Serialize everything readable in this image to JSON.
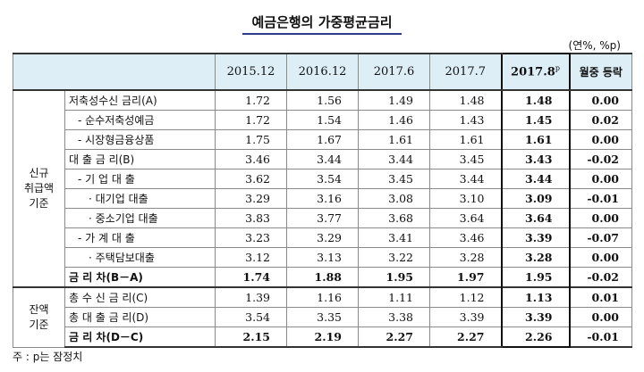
{
  "title": "예금은행의 가중평균금리",
  "unit": "(연%, %p)",
  "columns": [
    "2015.12",
    "2016.12",
    "2017.6",
    "2017.7",
    "2017.8",
    "월중 등락"
  ],
  "highlight_marker": "p",
  "groups": {
    "new": [
      "신규",
      "취급액",
      "기준"
    ],
    "balance": [
      "잔액",
      "기준"
    ]
  },
  "rows": [
    {
      "label": "저축성수신 금리(A)",
      "values": [
        "1.72",
        "1.56",
        "1.49",
        "1.48",
        "1.48"
      ],
      "change": "0.00"
    },
    {
      "label": "- 순수저축성예금",
      "values": [
        "1.72",
        "1.54",
        "1.46",
        "1.43",
        "1.45"
      ],
      "change": "0.02"
    },
    {
      "label": "- 시장형금융상품",
      "values": [
        "1.75",
        "1.67",
        "1.61",
        "1.61",
        "1.61"
      ],
      "change": "0.00"
    },
    {
      "label": "대 출 금 리(B)",
      "values": [
        "3.46",
        "3.44",
        "3.44",
        "3.45",
        "3.43"
      ],
      "change": "-0.02"
    },
    {
      "label": "- 기 업 대 출",
      "values": [
        "3.62",
        "3.54",
        "3.45",
        "3.44",
        "3.44"
      ],
      "change": "0.00"
    },
    {
      "label": "· 대기업 대출",
      "values": [
        "3.29",
        "3.16",
        "3.08",
        "3.10",
        "3.09"
      ],
      "change": "-0.01"
    },
    {
      "label": "· 중소기업 대출",
      "values": [
        "3.83",
        "3.77",
        "3.68",
        "3.64",
        "3.64"
      ],
      "change": "0.00"
    },
    {
      "label": "- 가 계 대 출",
      "values": [
        "3.23",
        "3.29",
        "3.41",
        "3.46",
        "3.39"
      ],
      "change": "-0.07"
    },
    {
      "label": "· 주택담보대출",
      "values": [
        "3.12",
        "3.13",
        "3.22",
        "3.28",
        "3.28"
      ],
      "change": "0.00"
    },
    {
      "label": "금 리 차(B－A)",
      "values": [
        "1.74",
        "1.88",
        "1.95",
        "1.97",
        "1.95"
      ],
      "change": "-0.02"
    },
    {
      "label": "총 수 신 금 리(C)",
      "values": [
        "1.39",
        "1.16",
        "1.11",
        "1.12",
        "1.13"
      ],
      "change": "0.01"
    },
    {
      "label": "총 대 출 금 리(D)",
      "values": [
        "3.54",
        "3.35",
        "3.38",
        "3.39",
        "3.39"
      ],
      "change": "0.00"
    },
    {
      "label": "금 리 차(D－C)",
      "values": [
        "2.15",
        "2.19",
        "2.27",
        "2.27",
        "2.26"
      ],
      "change": "-0.01"
    }
  ],
  "note": "주 : p는 잠정치"
}
